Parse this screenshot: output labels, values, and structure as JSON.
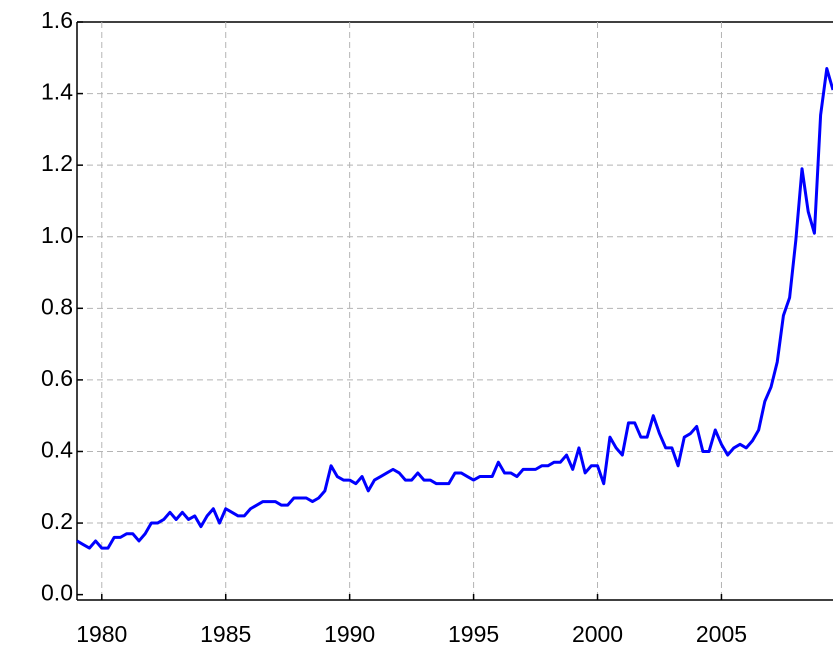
{
  "chart_data": {
    "type": "line",
    "color": "#0000ff",
    "grid": true,
    "x": [
      1979,
      1979.25,
      1979.5,
      1979.75,
      1980,
      1980.25,
      1980.5,
      1980.75,
      1981,
      1981.25,
      1981.5,
      1981.75,
      1982,
      1982.25,
      1982.5,
      1982.75,
      1983,
      1983.25,
      1983.5,
      1983.75,
      1984,
      1984.25,
      1984.5,
      1984.75,
      1985,
      1985.25,
      1985.5,
      1985.75,
      1986,
      1986.25,
      1986.5,
      1986.75,
      1987,
      1987.25,
      1987.5,
      1987.75,
      1988,
      1988.25,
      1988.5,
      1988.75,
      1989,
      1989.25,
      1989.5,
      1989.75,
      1990,
      1990.25,
      1990.5,
      1990.75,
      1991,
      1991.25,
      1991.5,
      1991.75,
      1992,
      1992.25,
      1992.5,
      1992.75,
      1993,
      1993.25,
      1993.5,
      1993.75,
      1994,
      1994.25,
      1994.5,
      1994.75,
      1995,
      1995.25,
      1995.5,
      1995.75,
      1996,
      1996.25,
      1996.5,
      1996.75,
      1997,
      1997.25,
      1997.5,
      1997.75,
      1998,
      1998.25,
      1998.5,
      1998.75,
      1999,
      1999.25,
      1999.5,
      1999.75,
      2000,
      2000.25,
      2000.5,
      2000.75,
      2001,
      2001.25,
      2001.5,
      2001.75,
      2002,
      2002.25,
      2002.5,
      2002.75,
      2003,
      2003.25,
      2003.5,
      2003.75,
      2004,
      2004.25,
      2004.5,
      2004.75,
      2005,
      2005.25,
      2005.5,
      2005.75,
      2006,
      2006.25,
      2006.5,
      2006.75,
      2007,
      2007.25,
      2007.5,
      2007.75,
      2008,
      2008.25,
      2008.5,
      2008.75,
      2009,
      2009.25,
      2009.5
    ],
    "values": [
      0.15,
      0.14,
      0.13,
      0.15,
      0.13,
      0.13,
      0.16,
      0.16,
      0.17,
      0.17,
      0.15,
      0.17,
      0.2,
      0.2,
      0.21,
      0.23,
      0.21,
      0.23,
      0.21,
      0.22,
      0.19,
      0.22,
      0.24,
      0.2,
      0.24,
      0.23,
      0.22,
      0.22,
      0.24,
      0.25,
      0.26,
      0.26,
      0.26,
      0.25,
      0.25,
      0.27,
      0.27,
      0.27,
      0.26,
      0.27,
      0.29,
      0.36,
      0.33,
      0.32,
      0.32,
      0.31,
      0.33,
      0.29,
      0.32,
      0.33,
      0.34,
      0.35,
      0.34,
      0.32,
      0.32,
      0.34,
      0.32,
      0.32,
      0.31,
      0.31,
      0.31,
      0.34,
      0.34,
      0.33,
      0.32,
      0.33,
      0.33,
      0.33,
      0.37,
      0.34,
      0.34,
      0.33,
      0.35,
      0.35,
      0.35,
      0.36,
      0.36,
      0.37,
      0.37,
      0.39,
      0.35,
      0.41,
      0.34,
      0.36,
      0.36,
      0.31,
      0.44,
      0.41,
      0.39,
      0.48,
      0.48,
      0.44,
      0.44,
      0.5,
      0.45,
      0.41,
      0.41,
      0.36,
      0.44,
      0.45,
      0.47,
      0.4,
      0.4,
      0.46,
      0.42,
      0.39,
      0.41,
      0.42,
      0.41,
      0.43,
      0.46,
      0.54,
      0.58,
      0.65,
      0.78,
      0.83,
      0.99,
      1.19,
      1.07,
      1.01,
      1.34,
      1.47,
      1.41
    ],
    "xlim": [
      1979,
      2009.5
    ],
    "xticks": [
      1980,
      1985,
      1990,
      1995,
      2000,
      2005
    ],
    "ylim": [
      -0.015,
      1.6
    ],
    "yticks": [
      {
        "value": 0,
        "label": "0.0"
      },
      0.2,
      0.4,
      0.6,
      0.8,
      {
        "value": 1,
        "label": "1.0"
      },
      1.2,
      1.4,
      1.6
    ]
  }
}
